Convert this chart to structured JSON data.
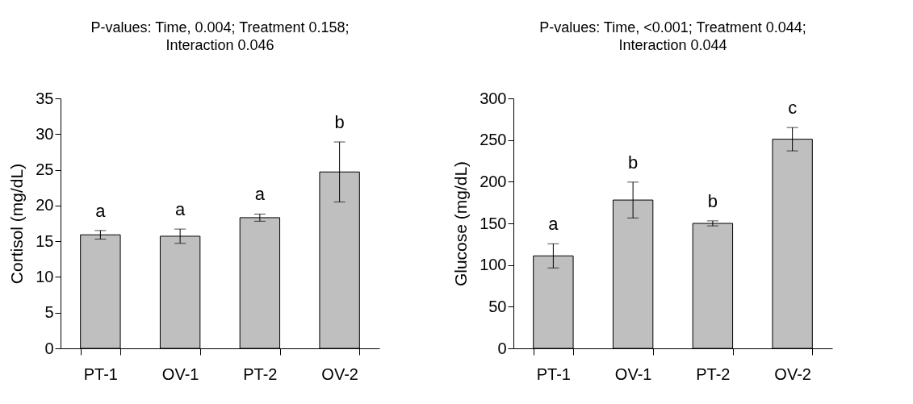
{
  "chart_data": [
    {
      "type": "bar",
      "title": "P-values: Time, 0.004; Treatment 0.158;",
      "subtitle": "Interaction 0.046",
      "ylabel": "Cortisol (mg/dL)",
      "categories": [
        "PT-1",
        "OV-1",
        "PT-2",
        "OV-2"
      ],
      "values": [
        15.9,
        15.7,
        18.3,
        24.7
      ],
      "errors": [
        0.6,
        1.0,
        0.5,
        4.2
      ],
      "color": "#bfbfbf",
      "ylim": [
        0,
        35
      ],
      "yticks": [
        0,
        5,
        10,
        15,
        20,
        25,
        30,
        35
      ],
      "grid": false,
      "annotations": [
        "a",
        "a",
        "a",
        "b"
      ]
    },
    {
      "type": "bar",
      "title": "P-values: Time, <0.001; Treatment 0.044;",
      "subtitle": "Interaction 0.044",
      "ylabel": "Glucose (mg/dL)",
      "categories": [
        "PT-1",
        "OV-1",
        "PT-2",
        "OV-2"
      ],
      "values": [
        111,
        178,
        150,
        251
      ],
      "errors": [
        14.5,
        21.5,
        3,
        14
      ],
      "color": "#bfbfbf",
      "ylim": [
        0,
        300
      ],
      "yticks": [
        0,
        50,
        100,
        150,
        200,
        250,
        300
      ],
      "grid": false,
      "annotations": [
        "a",
        "b",
        "b",
        "c"
      ]
    }
  ]
}
